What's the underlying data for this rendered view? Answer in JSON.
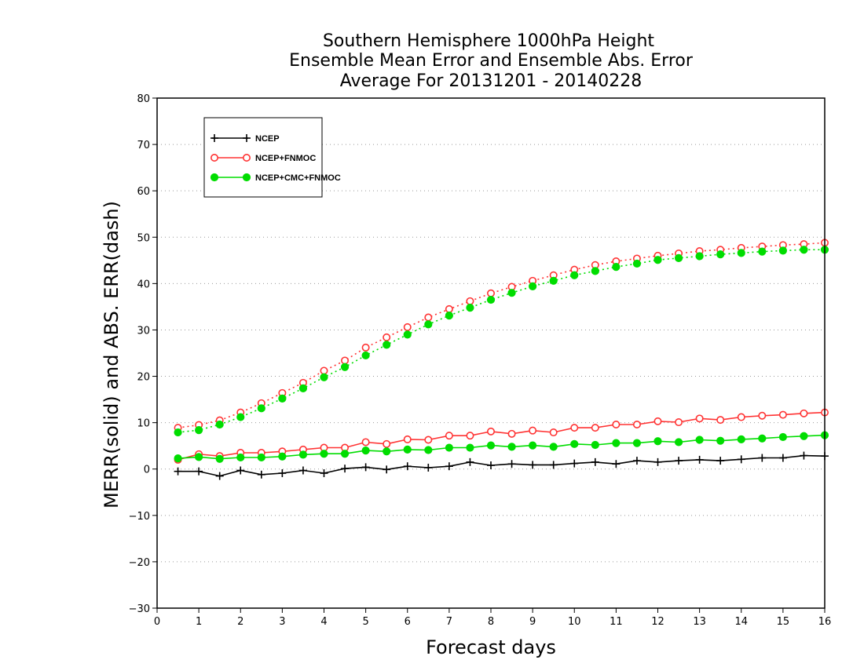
{
  "chart_data": {
    "type": "line",
    "title": [
      "Southern Hemisphere 1000hPa Height",
      "Ensemble Mean Error and Ensemble Abs. Error",
      "Average For 20131201 - 20140228"
    ],
    "xlabel": "Forecast days",
    "ylabel": "MERR(solid) and ABS. ERR(dash)",
    "xlim": [
      0,
      16
    ],
    "ylim": [
      -30,
      80
    ],
    "x_ticks": [
      0,
      1,
      2,
      3,
      4,
      5,
      6,
      7,
      8,
      9,
      10,
      11,
      12,
      13,
      14,
      15,
      16
    ],
    "y_ticks": [
      -30,
      -20,
      -10,
      0,
      10,
      20,
      30,
      40,
      50,
      60,
      70,
      80
    ],
    "grid": "horizontal-dotted",
    "legend_position": "top-left",
    "x": [
      0.5,
      1,
      1.5,
      2,
      2.5,
      3,
      3.5,
      4,
      4.5,
      5,
      5.5,
      6,
      6.5,
      7,
      7.5,
      8,
      8.5,
      9,
      9.5,
      10,
      10.5,
      11,
      11.5,
      12,
      12.5,
      13,
      13.5,
      14,
      14.5,
      15,
      15.5,
      16
    ],
    "series": [
      {
        "name": "NCEP",
        "color": "#000000",
        "marker": "plus",
        "merr": [
          -0.5,
          -0.5,
          -1.5,
          -0.3,
          -1.2,
          -0.9,
          -0.3,
          -0.9,
          0.1,
          0.4,
          -0.1,
          0.6,
          0.3,
          0.6,
          1.5,
          0.8,
          1.1,
          0.9,
          0.9,
          1.2,
          1.5,
          1.1,
          1.8,
          1.5,
          1.8,
          2.0,
          1.8,
          2.1,
          2.4,
          2.4,
          2.9,
          2.8
        ],
        "abs_err": null
      },
      {
        "name": "NCEP+FNMOC",
        "color": "#ff3333",
        "marker": "open-circle",
        "merr": [
          2.0,
          3.2,
          2.8,
          3.5,
          3.5,
          3.8,
          4.2,
          4.6,
          4.6,
          5.8,
          5.4,
          6.4,
          6.3,
          7.2,
          7.2,
          8.1,
          7.6,
          8.3,
          7.9,
          8.9,
          8.9,
          9.6,
          9.6,
          10.3,
          10.1,
          10.9,
          10.6,
          11.2,
          11.5,
          11.7,
          12.0,
          12.2
        ],
        "abs_err": [
          8.9,
          9.5,
          10.5,
          12.2,
          14.2,
          16.4,
          18.6,
          21.2,
          23.4,
          26.2,
          28.4,
          30.6,
          32.7,
          34.5,
          36.2,
          37.9,
          39.3,
          40.6,
          41.8,
          43.0,
          44.0,
          44.8,
          45.4,
          46.0,
          46.5,
          47.0,
          47.3,
          47.7,
          48.0,
          48.3,
          48.5,
          48.8
        ]
      },
      {
        "name": "NCEP+CMC+FNMOC",
        "color": "#00dd00",
        "marker": "filled-circle",
        "merr": [
          2.3,
          2.6,
          2.2,
          2.5,
          2.5,
          2.7,
          3.1,
          3.3,
          3.3,
          4.0,
          3.8,
          4.2,
          4.1,
          4.6,
          4.6,
          5.1,
          4.8,
          5.1,
          4.8,
          5.4,
          5.2,
          5.6,
          5.6,
          6.0,
          5.8,
          6.3,
          6.1,
          6.4,
          6.6,
          6.9,
          7.1,
          7.3
        ],
        "abs_err": [
          7.9,
          8.4,
          9.6,
          11.2,
          13.1,
          15.2,
          17.4,
          19.8,
          22.0,
          24.5,
          26.8,
          29.0,
          31.2,
          33.1,
          34.8,
          36.5,
          38.0,
          39.4,
          40.6,
          41.8,
          42.7,
          43.6,
          44.3,
          45.1,
          45.5,
          45.9,
          46.3,
          46.6,
          46.9,
          47.1,
          47.3,
          47.3
        ]
      }
    ]
  }
}
